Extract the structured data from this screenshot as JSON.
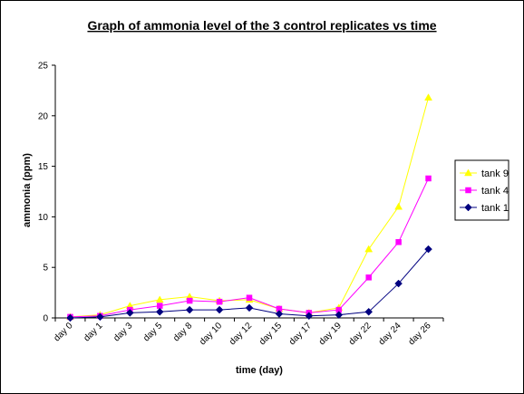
{
  "chart_data": {
    "type": "line",
    "title": "Graph of ammonia level of the 3 control replicates vs time",
    "xlabel": "time (day)",
    "ylabel": "ammonia (ppm)",
    "categories": [
      "day 0",
      "day 1",
      "day 3",
      "day 5",
      "day 8",
      "day 10",
      "day 12",
      "day 15",
      "day 17",
      "day 19",
      "day 22",
      "day 24",
      "day 26"
    ],
    "ylim": [
      0,
      25
    ],
    "yticks": [
      0,
      5,
      10,
      15,
      20,
      25
    ],
    "grid": false,
    "legend_position": "right",
    "series": [
      {
        "name": "tank 9",
        "color": "#ffff00",
        "marker": "triangle",
        "values": [
          0.1,
          0.3,
          1.2,
          1.8,
          2.1,
          1.7,
          1.8,
          0.9,
          0.5,
          1.0,
          6.8,
          11.0,
          21.8
        ]
      },
      {
        "name": "tank 4",
        "color": "#ff00ff",
        "marker": "square",
        "values": [
          0.1,
          0.2,
          0.8,
          1.2,
          1.7,
          1.6,
          2.0,
          0.9,
          0.5,
          0.8,
          4.0,
          7.5,
          13.8
        ]
      },
      {
        "name": "tank 1",
        "color": "#000080",
        "marker": "diamond",
        "values": [
          0.0,
          0.1,
          0.5,
          0.6,
          0.8,
          0.8,
          1.0,
          0.4,
          0.2,
          0.3,
          0.6,
          3.4,
          6.8
        ]
      }
    ]
  }
}
